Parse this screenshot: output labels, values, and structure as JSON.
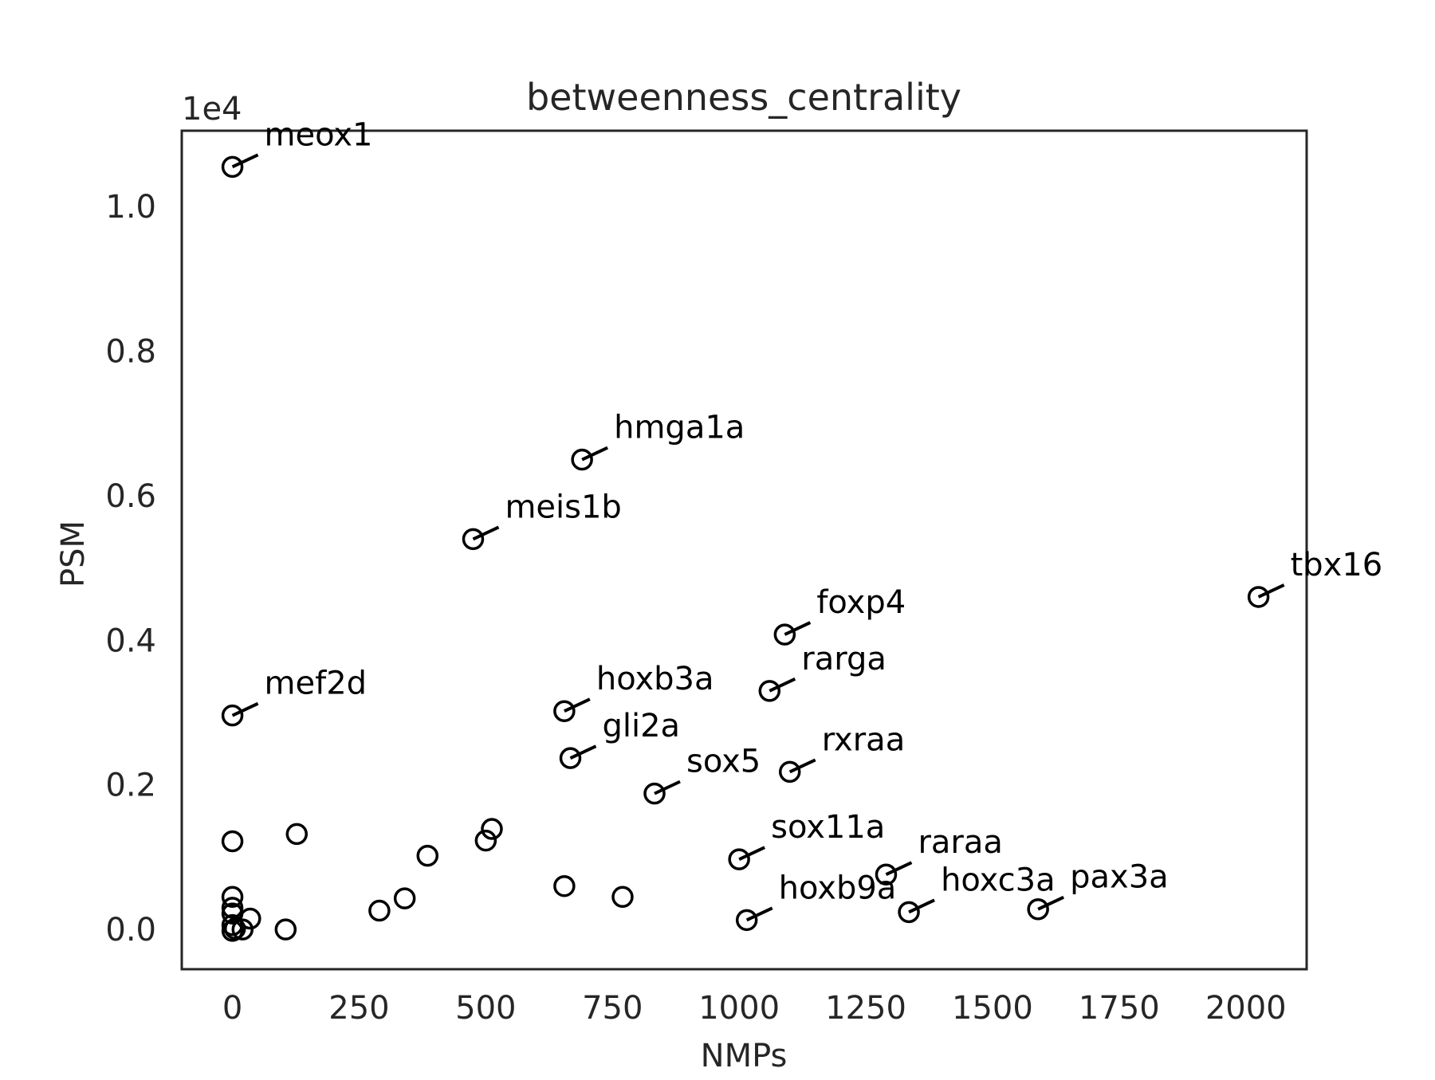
{
  "chart_data": {
    "type": "scatter",
    "title": "betweenness_centrality",
    "xlabel": "NMPs",
    "ylabel": "PSM",
    "y_offset_text": "1e4",
    "y_scale_factor": 10000,
    "xlim": [
      -100,
      2120
    ],
    "ylim": [
      -550,
      11050
    ],
    "x_ticks": [
      0,
      250,
      500,
      750,
      1000,
      1250,
      1500,
      1750,
      2000
    ],
    "x_tick_labels": [
      "0",
      "250",
      "500",
      "750",
      "1000",
      "1250",
      "1500",
      "1750",
      "2000"
    ],
    "y_ticks": [
      0,
      2000,
      4000,
      6000,
      8000,
      10000
    ],
    "y_tick_labels": [
      "0.0",
      "0.2",
      "0.4",
      "0.6",
      "0.8",
      "1.0"
    ],
    "grid": false,
    "marker_style": "open-circle",
    "colors": {
      "marker": "#000000",
      "axis": "#262626",
      "background": "#ffffff"
    },
    "labeled_points": [
      {
        "label": "meox1",
        "x": 0,
        "y": 10550
      },
      {
        "label": "hmga1a",
        "x": 690,
        "y": 6500
      },
      {
        "label": "meis1b",
        "x": 475,
        "y": 5400
      },
      {
        "label": "tbx16",
        "x": 2025,
        "y": 4600
      },
      {
        "label": "foxp4",
        "x": 1090,
        "y": 4080
      },
      {
        "label": "rarga",
        "x": 1060,
        "y": 3300
      },
      {
        "label": "mef2d",
        "x": 0,
        "y": 2960
      },
      {
        "label": "hoxb3a",
        "x": 655,
        "y": 3020
      },
      {
        "label": "gli2a",
        "x": 667,
        "y": 2370
      },
      {
        "label": "rxraa",
        "x": 1100,
        "y": 2180
      },
      {
        "label": "sox5",
        "x": 833,
        "y": 1880
      },
      {
        "label": "sox11a",
        "x": 1000,
        "y": 970
      },
      {
        "label": "raraa",
        "x": 1290,
        "y": 760
      },
      {
        "label": "hoxb9a",
        "x": 1015,
        "y": 130
      },
      {
        "label": "hoxc3a",
        "x": 1335,
        "y": 240
      },
      {
        "label": "pax3a",
        "x": 1590,
        "y": 280
      }
    ],
    "unlabeled_points": [
      {
        "x": 0,
        "y": 1220
      },
      {
        "x": 127,
        "y": 1320
      },
      {
        "x": 512,
        "y": 1390
      },
      {
        "x": 500,
        "y": 1230
      },
      {
        "x": 385,
        "y": 1020
      },
      {
        "x": 0,
        "y": 450
      },
      {
        "x": 0,
        "y": 300
      },
      {
        "x": 0,
        "y": 220
      },
      {
        "x": 35,
        "y": 150
      },
      {
        "x": 0,
        "y": 60
      },
      {
        "x": 5,
        "y": 10
      },
      {
        "x": 20,
        "y": 0
      },
      {
        "x": 0,
        "y": -20
      },
      {
        "x": 105,
        "y": 0
      },
      {
        "x": 290,
        "y": 260
      },
      {
        "x": 340,
        "y": 430
      },
      {
        "x": 655,
        "y": 600
      },
      {
        "x": 770,
        "y": 450
      }
    ]
  }
}
